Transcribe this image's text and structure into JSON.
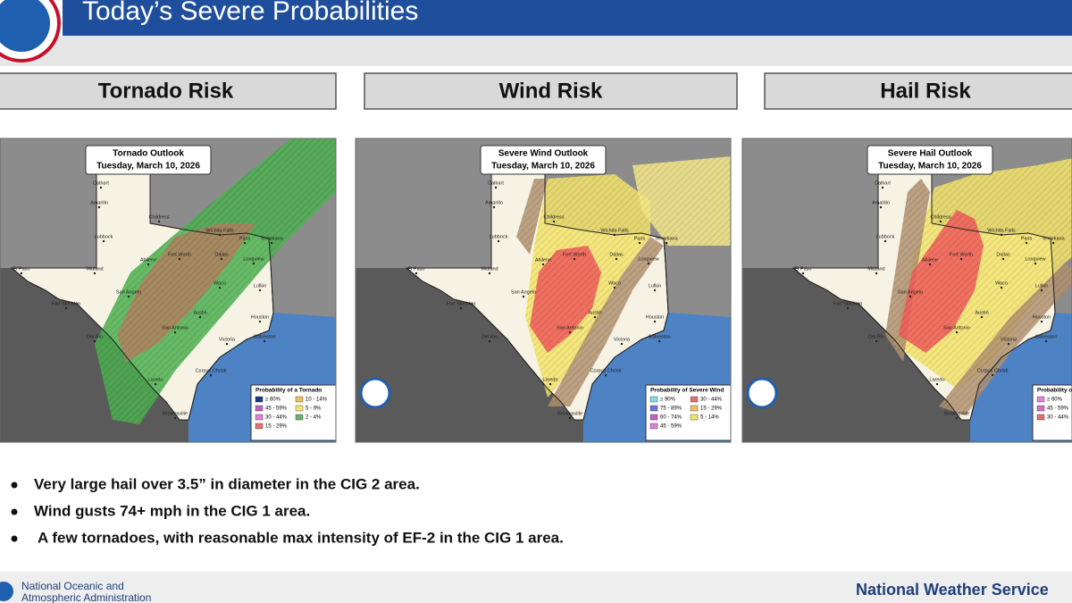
{
  "header": {
    "title": "Today’s Severe Probabilities"
  },
  "panels": [
    {
      "heading": "Tornado Risk",
      "map": {
        "title": "Tornado Outlook",
        "date": "Tuesday, March 10, 2026",
        "legend_title": "Probability of a Tornado",
        "legend_bins": [
          "≥ 60%",
          "45 - 59%",
          "30 - 44%",
          "15 - 29%",
          "10 - 14%",
          "5 - 9%",
          "2 - 4%"
        ]
      }
    },
    {
      "heading": "Wind Risk",
      "map": {
        "title": "Severe Wind Outlook",
        "date": "Tuesday, March 10, 2026",
        "legend_title": "Probability of Severe Wind",
        "legend_bins": [
          "≥ 90%",
          "75 - 89%",
          "60 - 74%",
          "45 - 59%",
          "30 - 44%",
          "15 - 29%",
          "5 - 14%"
        ]
      }
    },
    {
      "heading": "Hail Risk",
      "map": {
        "title": "Severe Hail Outlook",
        "date": "Tuesday, March 10, 2026",
        "legend_title": "Probability of Severe Hail",
        "legend_bins": [
          "≥ 60%",
          "45 - 59%",
          "30 - 44%"
        ]
      }
    }
  ],
  "cities": [
    "Dalhart",
    "Amarillo",
    "Childress",
    "Lubbock",
    "Wichita Falls",
    "Paris",
    "Texarkana",
    "El Paso",
    "Midland",
    "Abilene",
    "Fort Worth",
    "Dallas",
    "Longview",
    "San Angelo",
    "Waco",
    "Lufkin",
    "Fort Stockton",
    "Austin",
    "Houston",
    "Del Rio",
    "San Antonio",
    "Victoria",
    "Galveston",
    "Corpus Christi",
    "Laredo",
    "Brownsville"
  ],
  "bullets": [
    "Very large hail over 3.5” in diameter in the CIG 2 area.",
    "Wind gusts 74+ mph in the CIG 1 area.",
    "A few tornadoes, with reasonable max intensity of EF-2 in the CIG 1 area."
  ],
  "footer": {
    "agency": [
      "National Oceanic and",
      "Atmospheric Administration"
    ],
    "service": "National Weather Service"
  }
}
